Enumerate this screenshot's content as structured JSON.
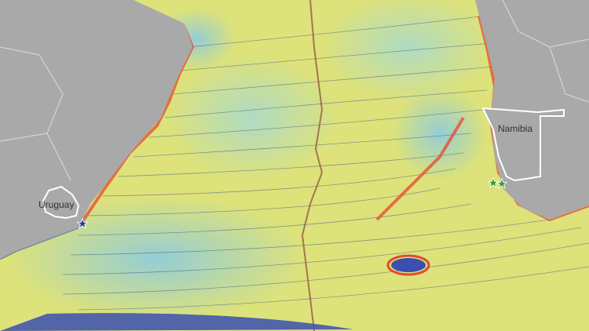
{
  "map": {
    "labels": [
      {
        "name": "uruguay",
        "text": "Uruguay"
      },
      {
        "name": "namibia",
        "text": "Namibia"
      }
    ],
    "markers": [
      {
        "name": "blue-star",
        "color": "#1f3f9a"
      },
      {
        "name": "green-star-1",
        "color": "#3a9a2a"
      },
      {
        "name": "green-star-2",
        "color": "#3a9a2a"
      }
    ],
    "colors": {
      "land": "#a9a9a9",
      "border": "#ffffff",
      "low": "#3a4fb0",
      "mid": "#9fd3e0",
      "base": "#dde27a",
      "high": "#e34a33"
    }
  }
}
